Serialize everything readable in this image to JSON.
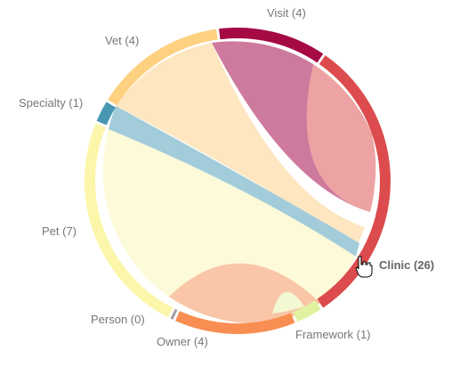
{
  "diagram": {
    "type": "chord",
    "groups": [
      {
        "id": "visit",
        "label": "Visit (4)",
        "color": "#a50a45"
      },
      {
        "id": "clinic",
        "label": "Clinic (26)",
        "color": "#dc4b4d",
        "highlighted": true
      },
      {
        "id": "framework",
        "label": "Framework (1)",
        "color": "#e0f2a0"
      },
      {
        "id": "owner",
        "label": "Owner (4)",
        "color": "#f98e52"
      },
      {
        "id": "person",
        "label": "Person (0)",
        "color": "#9e9e9e"
      },
      {
        "id": "pet",
        "label": "Pet (7)",
        "color": "#fbf6a9"
      },
      {
        "id": "specialty",
        "label": "Specialty (1)",
        "color": "#4797b3"
      },
      {
        "id": "vet",
        "label": "Vet (4)",
        "color": "#fed181"
      }
    ],
    "ribbons": [
      {
        "source": "visit",
        "target": "clinic",
        "color": "#cd7a9e"
      },
      {
        "source": "clinic",
        "target": "clinic",
        "color": "#eda3a3"
      },
      {
        "source": "vet",
        "target": "clinic",
        "color": "#fde6c0"
      },
      {
        "source": "specialty",
        "target": "clinic",
        "color": "#a3ccdb"
      },
      {
        "source": "pet",
        "target": "clinic",
        "color": "#fdfad9"
      },
      {
        "source": "owner",
        "target": "clinic",
        "color": "#f9c6a7"
      },
      {
        "source": "framework",
        "target": "framework",
        "color": "#f2f9d3"
      }
    ]
  }
}
